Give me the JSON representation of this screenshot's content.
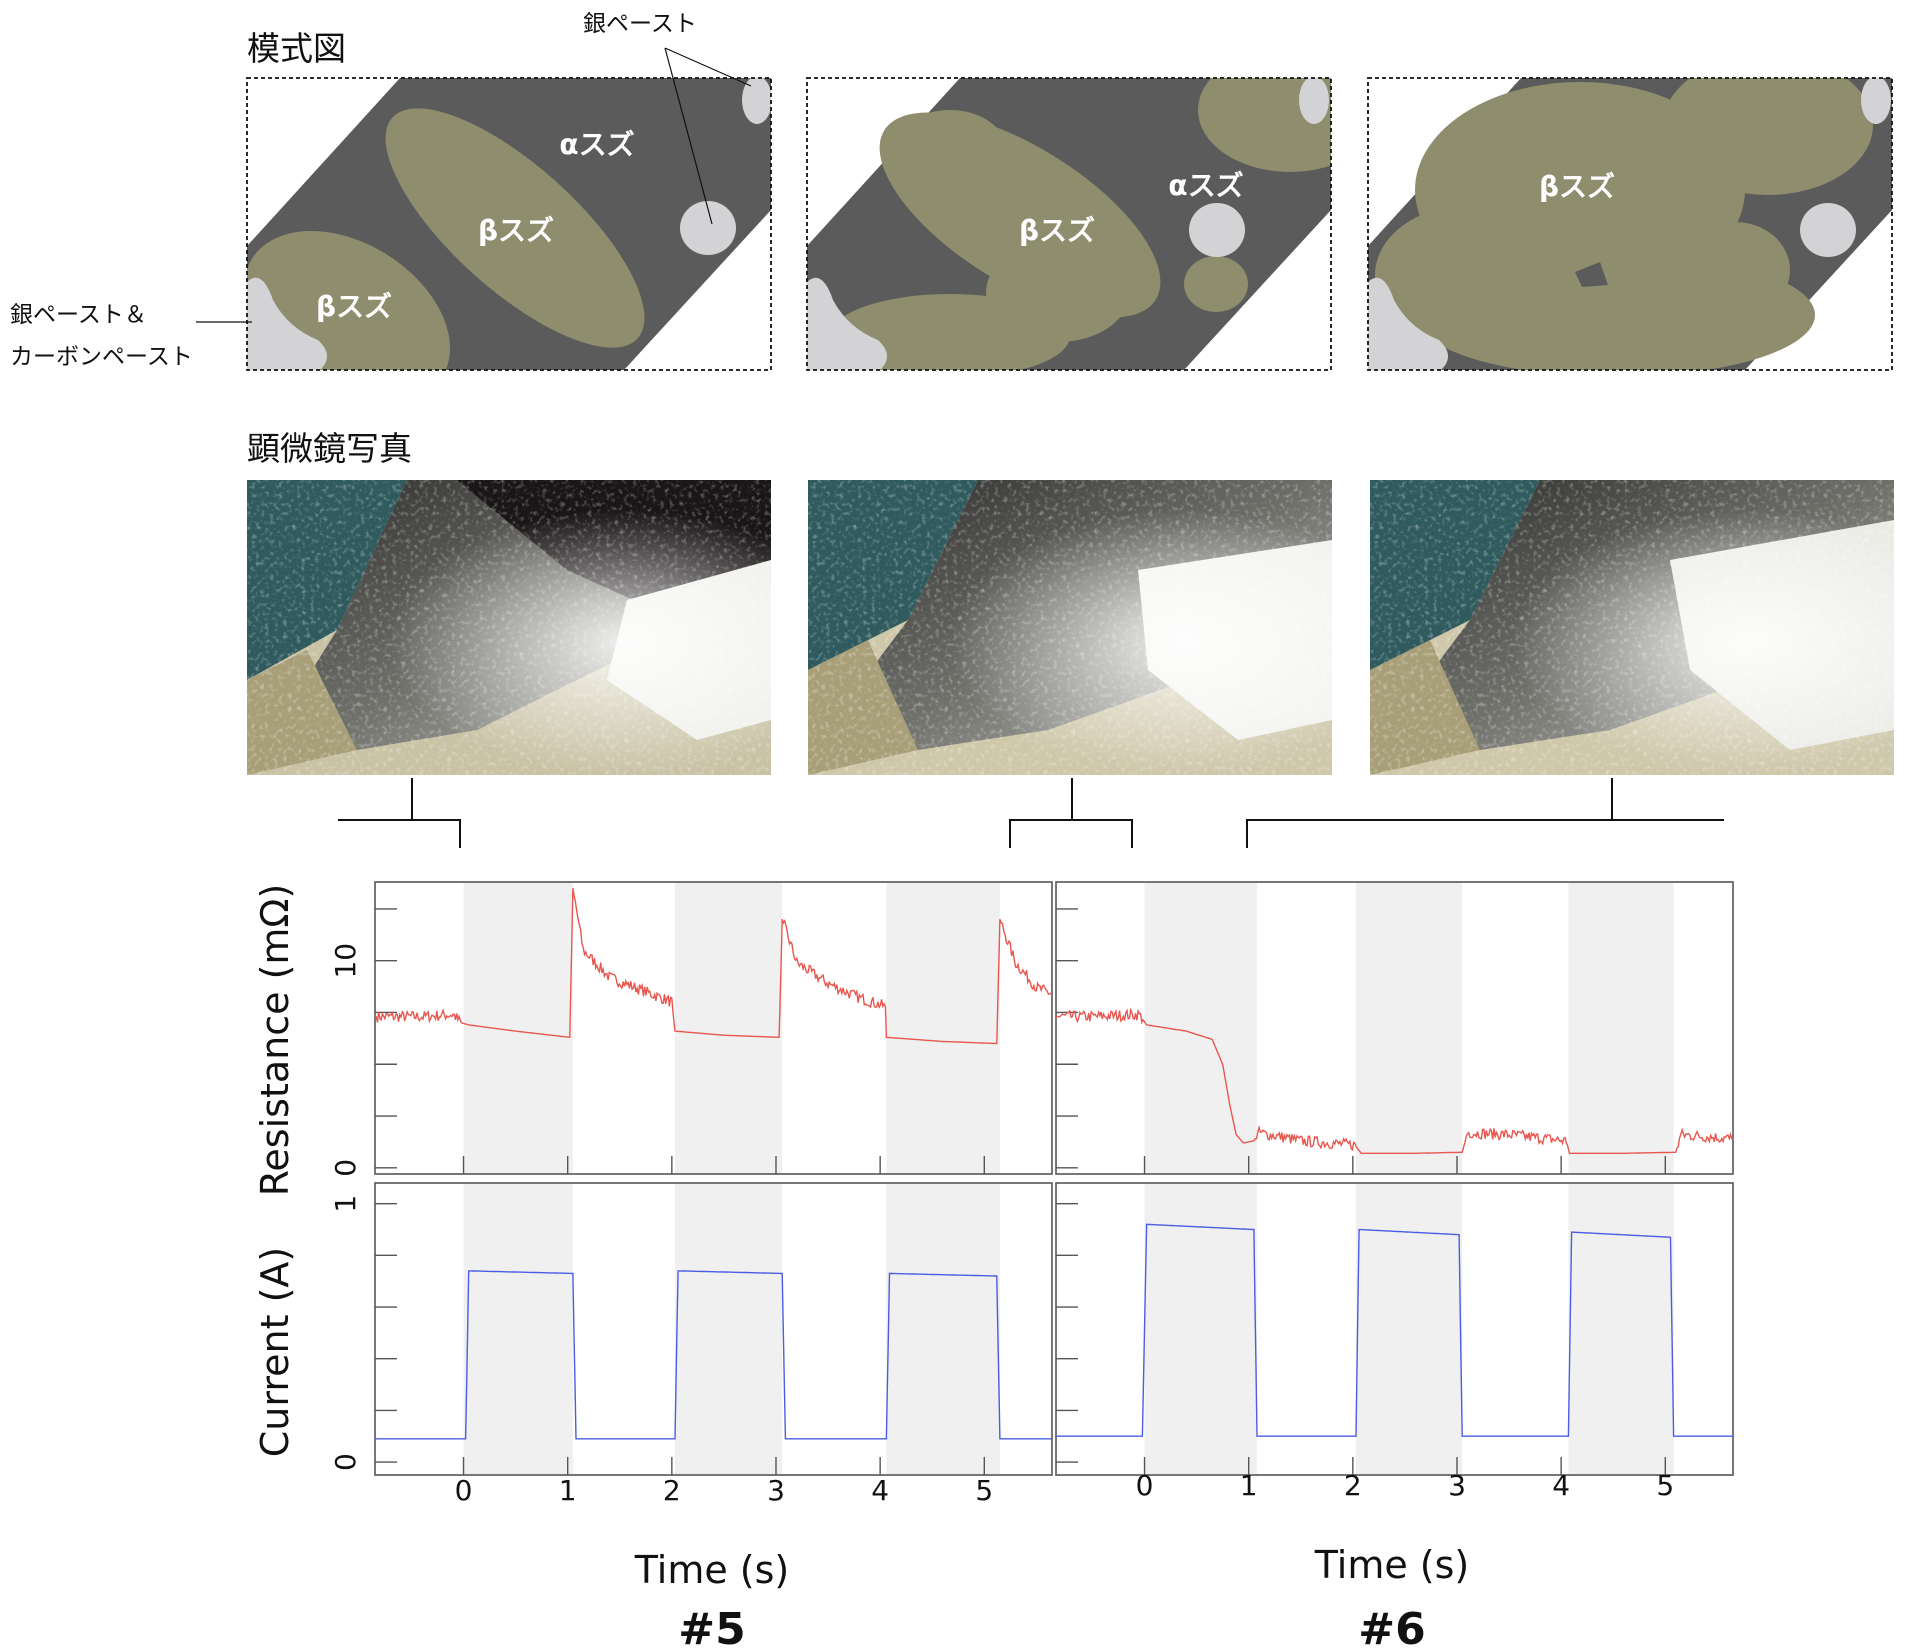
{
  "sections": {
    "schematic_title": "模式図",
    "micrograph_title": "顕微鏡写真"
  },
  "callouts": {
    "silver_paste": "銀ペースト",
    "silver_carbon_line1": "銀ペースト＆",
    "silver_carbon_line2": "カーボンペースト"
  },
  "schematic_panels": [
    {
      "labels": [
        "αスズ",
        "βスズ",
        "βスズ"
      ]
    },
    {
      "labels": [
        "αスズ",
        "βスズ"
      ]
    },
    {
      "labels": [
        "βスズ"
      ]
    }
  ],
  "colors": {
    "alpha_tin": "#5b5b5b",
    "beta_tin": "#8e8d6d",
    "silver_paste": "#d3d3d5",
    "resistance_line": "#e8574f",
    "current_line": "#4b5de4",
    "shading": "#f0f0f0"
  },
  "samples": [
    "#5",
    "#6"
  ],
  "chart_data": [
    {
      "type": "line",
      "sample": "#5",
      "xlabel": "Time (s)",
      "xlim": [
        -0.85,
        5.65
      ],
      "x_ticks": [
        0,
        1,
        2,
        3,
        4,
        5
      ],
      "current_on_intervals": [
        [
          0,
          1.05
        ],
        [
          2.03,
          3.06
        ],
        [
          4.06,
          5.15
        ]
      ],
      "resistance": {
        "ylabel": "Resistance (mΩ)",
        "ylim": [
          -0.3,
          13.8
        ],
        "y_tick_labels": [
          0,
          10
        ],
        "points": [
          [
            -0.85,
            7.3
          ],
          [
            -0.6,
            7.3
          ],
          [
            -0.4,
            7.3
          ],
          [
            -0.1,
            7.4
          ],
          [
            -0.02,
            7.0
          ],
          [
            0.05,
            6.9
          ],
          [
            0.5,
            6.6
          ],
          [
            1.02,
            6.3
          ],
          [
            1.05,
            13.5
          ],
          [
            1.15,
            10.5
          ],
          [
            1.4,
            9.2
          ],
          [
            1.8,
            8.4
          ],
          [
            2.0,
            8.0
          ],
          [
            2.03,
            6.6
          ],
          [
            2.5,
            6.4
          ],
          [
            3.03,
            6.3
          ],
          [
            3.06,
            12.0
          ],
          [
            3.2,
            9.9
          ],
          [
            3.5,
            8.9
          ],
          [
            3.8,
            8.2
          ],
          [
            4.05,
            7.8
          ],
          [
            4.06,
            6.3
          ],
          [
            4.6,
            6.1
          ],
          [
            5.12,
            6.0
          ],
          [
            5.15,
            12.0
          ],
          [
            5.3,
            9.9
          ],
          [
            5.5,
            8.7
          ],
          [
            5.65,
            8.4
          ]
        ],
        "noisy_segments": [
          [
            -0.85,
            0.0
          ],
          [
            1.05,
            2.03
          ],
          [
            3.06,
            4.06
          ],
          [
            5.15,
            5.65
          ]
        ]
      },
      "current": {
        "ylabel": "Current (A)",
        "ylim": [
          -0.05,
          1.08
        ],
        "y_tick_labels": [
          0,
          1
        ],
        "points": [
          [
            -0.85,
            0.09
          ],
          [
            0.02,
            0.09
          ],
          [
            0.05,
            0.74
          ],
          [
            1.05,
            0.73
          ],
          [
            1.08,
            0.09
          ],
          [
            2.03,
            0.09
          ],
          [
            2.06,
            0.74
          ],
          [
            3.06,
            0.73
          ],
          [
            3.09,
            0.09
          ],
          [
            4.06,
            0.09
          ],
          [
            4.09,
            0.73
          ],
          [
            5.12,
            0.72
          ],
          [
            5.15,
            0.09
          ],
          [
            5.65,
            0.09
          ]
        ]
      }
    },
    {
      "type": "line",
      "sample": "#6",
      "xlabel": "Time (s)",
      "xlim": [
        -0.85,
        5.65
      ],
      "x_ticks": [
        0,
        1,
        2,
        3,
        4,
        5
      ],
      "current_on_intervals": [
        [
          0,
          1.08
        ],
        [
          2.03,
          3.05
        ],
        [
          4.07,
          5.08
        ]
      ],
      "resistance": {
        "ylabel": "",
        "ylim": [
          -0.3,
          13.8
        ],
        "y_tick_labels": [],
        "points": [
          [
            -0.85,
            7.3
          ],
          [
            -0.5,
            7.3
          ],
          [
            -0.05,
            7.4
          ],
          [
            0.02,
            6.9
          ],
          [
            0.4,
            6.6
          ],
          [
            0.65,
            6.2
          ],
          [
            0.75,
            5.0
          ],
          [
            0.82,
            3.0
          ],
          [
            0.88,
            1.6
          ],
          [
            0.95,
            1.2
          ],
          [
            1.05,
            1.3
          ],
          [
            1.1,
            1.7
          ],
          [
            1.5,
            1.3
          ],
          [
            2.02,
            1.1
          ],
          [
            2.08,
            0.7
          ],
          [
            2.6,
            0.7
          ],
          [
            3.05,
            0.75
          ],
          [
            3.1,
            1.7
          ],
          [
            3.5,
            1.6
          ],
          [
            4.05,
            1.3
          ],
          [
            4.08,
            0.7
          ],
          [
            4.6,
            0.7
          ],
          [
            5.1,
            0.75
          ],
          [
            5.15,
            1.6
          ],
          [
            5.65,
            1.4
          ]
        ],
        "noisy_segments": [
          [
            -0.85,
            0.0
          ],
          [
            1.05,
            2.05
          ],
          [
            3.05,
            4.07
          ],
          [
            5.1,
            5.65
          ]
        ]
      },
      "current": {
        "ylabel": "",
        "ylim": [
          -0.05,
          1.08
        ],
        "y_tick_labels": [],
        "points": [
          [
            -0.85,
            0.1
          ],
          [
            -0.02,
            0.1
          ],
          [
            0.02,
            0.92
          ],
          [
            1.05,
            0.9
          ],
          [
            1.08,
            0.1
          ],
          [
            2.03,
            0.1
          ],
          [
            2.06,
            0.9
          ],
          [
            3.02,
            0.88
          ],
          [
            3.05,
            0.1
          ],
          [
            4.07,
            0.1
          ],
          [
            4.1,
            0.89
          ],
          [
            5.05,
            0.87
          ],
          [
            5.08,
            0.1
          ],
          [
            5.65,
            0.1
          ]
        ]
      }
    }
  ]
}
